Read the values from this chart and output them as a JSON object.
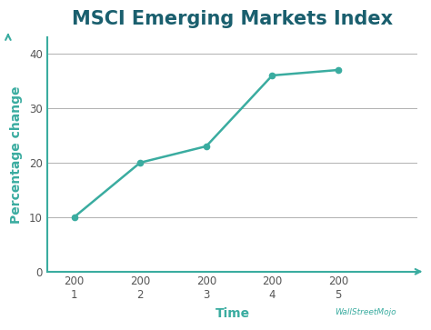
{
  "title": "MSCI Emerging Markets Index",
  "xlabel": "Time",
  "ylabel": "Percentage change",
  "x_values": [
    1,
    2,
    3,
    4,
    5
  ],
  "y_values": [
    10,
    20,
    23,
    36,
    37
  ],
  "x_tick_top": [
    "200",
    "200",
    "200",
    "200",
    "200"
  ],
  "x_tick_bottom": [
    "1",
    "2",
    "3",
    "4",
    "5"
  ],
  "ylim": [
    0,
    43
  ],
  "xlim": [
    0.6,
    6.2
  ],
  "line_color": "#3aaca0",
  "marker_color": "#3aaca0",
  "grid_color": "#b0b0b0",
  "title_color": "#1a5f6e",
  "axis_color": "#3aaca0",
  "axis_label_color": "#3aaca0",
  "tick_label_color": "#555555",
  "background_color": "#ffffff",
  "title_fontsize": 15,
  "label_fontsize": 10,
  "tick_fontsize": 8.5,
  "yticks": [
    0,
    10,
    20,
    30,
    40
  ]
}
